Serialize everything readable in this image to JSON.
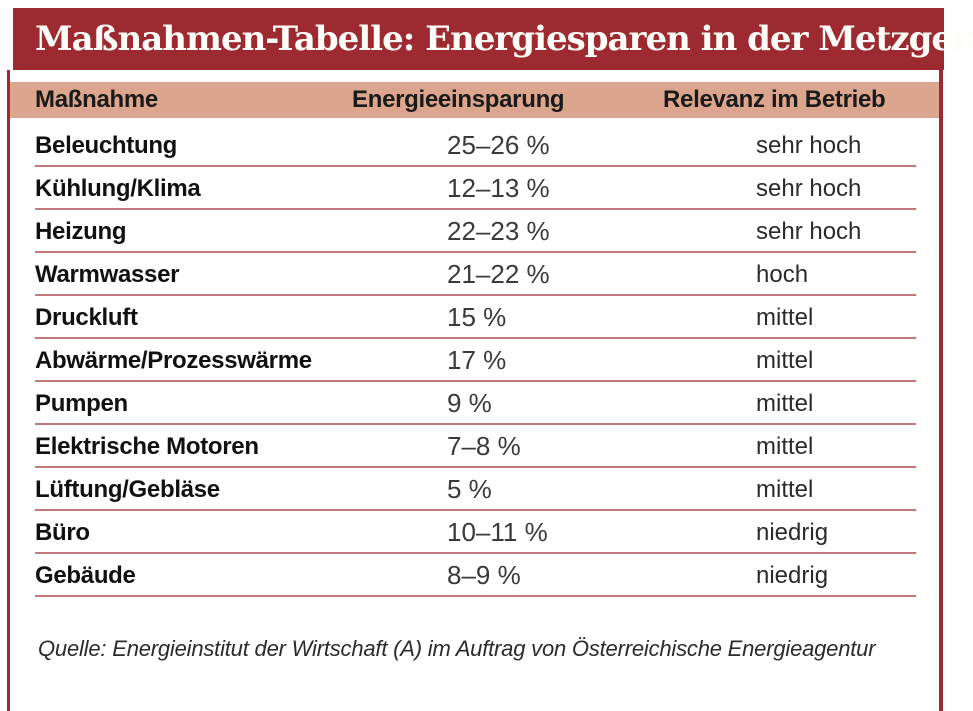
{
  "title": "Maßnahmen-Tabelle: Energiesparen in der Metzgerei",
  "source_note": "Quelle: Energieinstitut der Wirtschaft (A) im Auftrag von Österreichische Energieagentur",
  "colors": {
    "titlebar_bg": "#9d2a30",
    "border": "#9d2a30",
    "header_row_bg": "#dca68e",
    "divider": "#c4787c",
    "title_text": "#fffdf8",
    "body_text": "#1a1a1a"
  },
  "chart_data": {
    "type": "table",
    "title": "Maßnahmen-Tabelle: Energiesparen in der Metzgerei",
    "columns": [
      "Maßnahme",
      "Energieeinsparung",
      "Relevanz im Betrieb"
    ],
    "rows": [
      [
        "Beleuchtung",
        "25–26 %",
        "sehr hoch"
      ],
      [
        "Kühlung/Klima",
        "12–13 %",
        "sehr hoch"
      ],
      [
        "Heizung",
        "22–23 %",
        "sehr hoch"
      ],
      [
        "Warmwasser",
        "21–22 %",
        "hoch"
      ],
      [
        "Druckluft",
        "15 %",
        "mittel"
      ],
      [
        "Abwärme/Prozesswärme",
        "17 %",
        "mittel"
      ],
      [
        "Pumpen",
        "9 %",
        "mittel"
      ],
      [
        "Elektrische Motoren",
        "7–8 %",
        "mittel"
      ],
      [
        "Lüftung/Gebläse",
        "5 %",
        "mittel"
      ],
      [
        "Büro",
        "10–11 %",
        "niedrig"
      ],
      [
        "Gebäude",
        "8–9 %",
        "niedrig"
      ]
    ],
    "source": "Quelle: Energieinstitut der Wirtschaft (A) im Auftrag von Österreichische Energieagentur"
  }
}
